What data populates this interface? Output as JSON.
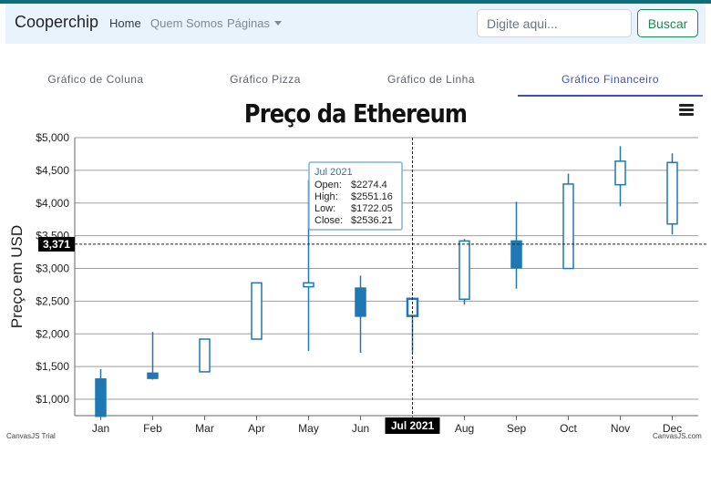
{
  "navbar": {
    "brand": "Cooperchip",
    "links": [
      "Home",
      "Quem Somos",
      "Páginas"
    ],
    "search_placeholder": "Digite aqui...",
    "search_button": "Buscar"
  },
  "tabs": [
    "Gráfico de Coluna",
    "Gráfico Pizza",
    "Gráfico de Linha",
    "Gráfico Financeiro"
  ],
  "active_tab": 3,
  "chart_data": {
    "type": "candlestick",
    "title": "Preço da Ethereum",
    "ylabel": "Preço em USD",
    "ylim": [
      750,
      5000
    ],
    "yticks": [
      "$1,000",
      "$1,500",
      "$2,000",
      "$2,500",
      "$3,000",
      "$3,500",
      "$4,000",
      "$4,500",
      "$5,000"
    ],
    "ytick_values": [
      1000,
      1500,
      2000,
      2500,
      3000,
      3500,
      4000,
      4500,
      5000
    ],
    "grid": true,
    "categories": [
      "Jan",
      "Feb",
      "Mar",
      "Apr",
      "May",
      "Jun",
      "Jul",
      "Aug",
      "Sep",
      "Oct",
      "Nov",
      "Dec"
    ],
    "open": [
      1310,
      1400,
      1420,
      1920,
      2720,
      2700,
      2274.4,
      2530,
      3420,
      3000,
      4280,
      3680
    ],
    "high": [
      1460,
      2030,
      1920,
      2780,
      4350,
      2890,
      2551.16,
      3450,
      4020,
      4450,
      4870,
      4760
    ],
    "low": [
      740,
      1300,
      1420,
      1920,
      1740,
      1710,
      1722.05,
      2450,
      2690,
      3000,
      3950,
      3520
    ],
    "close": [
      740,
      1320,
      1920,
      2780,
      2780,
      2270,
      2536.21,
      3420,
      3010,
      4290,
      4640,
      4620
    ],
    "crosshair": {
      "y_label": "3,371",
      "y_value": 3371,
      "x_label": "Jul 2021",
      "x_index": 6
    },
    "tooltip": {
      "title": "Jul 2021",
      "rows": [
        {
          "label": "Open:",
          "value": "$2274.4"
        },
        {
          "label": "High:",
          "value": "$2551.16"
        },
        {
          "label": "Low:",
          "value": "$1722.05"
        },
        {
          "label": "Close:",
          "value": "$2536.21"
        }
      ]
    },
    "colors": {
      "rising": "#ffffff",
      "falling": "#1f77b4",
      "stroke": "#1f77b4",
      "grid": "#9e9e9e"
    }
  },
  "footer": {
    "trial": "CanvasJS Trial",
    "credit": "CanvasJS.com"
  }
}
